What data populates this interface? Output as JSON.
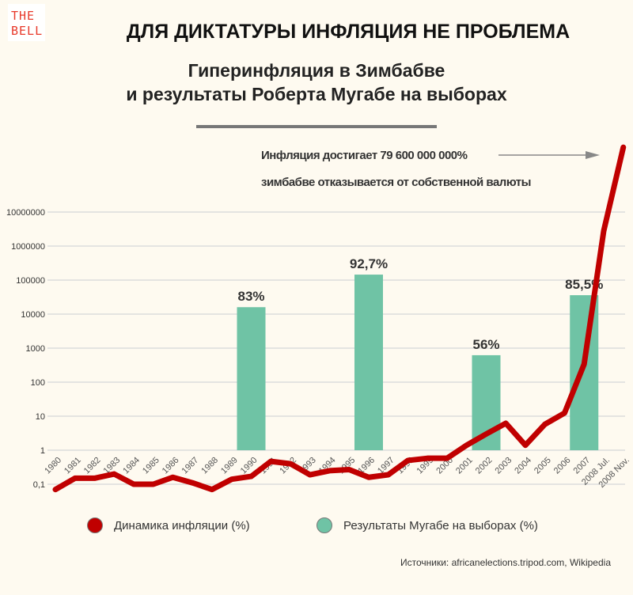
{
  "logo": {
    "line1": "THE",
    "line2": "BELL"
  },
  "header": {
    "title": "ДЛЯ ДИКТАТУРЫ ИНФЛЯЦИЯ НЕ ПРОБЛЕМА",
    "subtitle_line1": "Гиперинфляция в Зимбабве",
    "subtitle_line2": "и результаты Роберта Мугабе на выборах"
  },
  "annotation": {
    "line1": "Инфляция достигает 79 600 000 000%",
    "line2": "зимбабве отказывается от собственной валюты"
  },
  "legend": {
    "inflation": "Динамика инфляции (%)",
    "elections": "Результаты Мугабе на выборах (%)"
  },
  "source": "Источники: africanelections.tripod.com, Wikipedia",
  "colors": {
    "inflation": "#c00000",
    "elections": "#6fc3a5",
    "grid": "#dcdcdc",
    "background": "#fefaf0"
  },
  "chart_data": {
    "type": "bar+line",
    "yscale": "log",
    "ylim": [
      0.1,
      10000000
    ],
    "grid": true,
    "legend_placement": "bottom",
    "ytick_labels": [
      "0,1",
      "1",
      "10",
      "100",
      "1000",
      "10000",
      "100000",
      "1000000",
      "10000000"
    ],
    "categories": [
      "1980",
      "1981",
      "1982",
      "1983",
      "1984",
      "1985",
      "1986",
      "1987",
      "1988",
      "1989",
      "1990",
      "1991",
      "1992",
      "1993",
      "1994",
      "1995",
      "1996",
      "1997",
      "1998",
      "1999",
      "2000",
      "2001",
      "2002",
      "2003",
      "2004",
      "2005",
      "2006",
      "2007",
      "2008 Jul.",
      "2008 Nov."
    ],
    "series": [
      {
        "name": "Динамика инфляции (%)",
        "kind": "line",
        "values": [
          0.07,
          0.15,
          0.15,
          0.2,
          0.1,
          0.1,
          0.16,
          0.11,
          0.07,
          0.14,
          0.17,
          0.47,
          0.4,
          0.19,
          0.25,
          0.27,
          0.16,
          0.19,
          0.5,
          0.58,
          0.58,
          1.4,
          3,
          6.2,
          1.4,
          5.8,
          12.4,
          340,
          2800000,
          800000000
        ]
      },
      {
        "name": "Результаты Мугабе на выборах (%)",
        "kind": "bar",
        "bars": [
          {
            "category": "1990",
            "plotted_value": 16000,
            "label": "83%"
          },
          {
            "category": "1996",
            "plotted_value": 145000,
            "label": "92,7%"
          },
          {
            "category": "2002",
            "plotted_value": 620,
            "label": "56%"
          },
          {
            "category": "2007",
            "plotted_value": 36000,
            "label": "85,5%"
          }
        ]
      }
    ]
  }
}
